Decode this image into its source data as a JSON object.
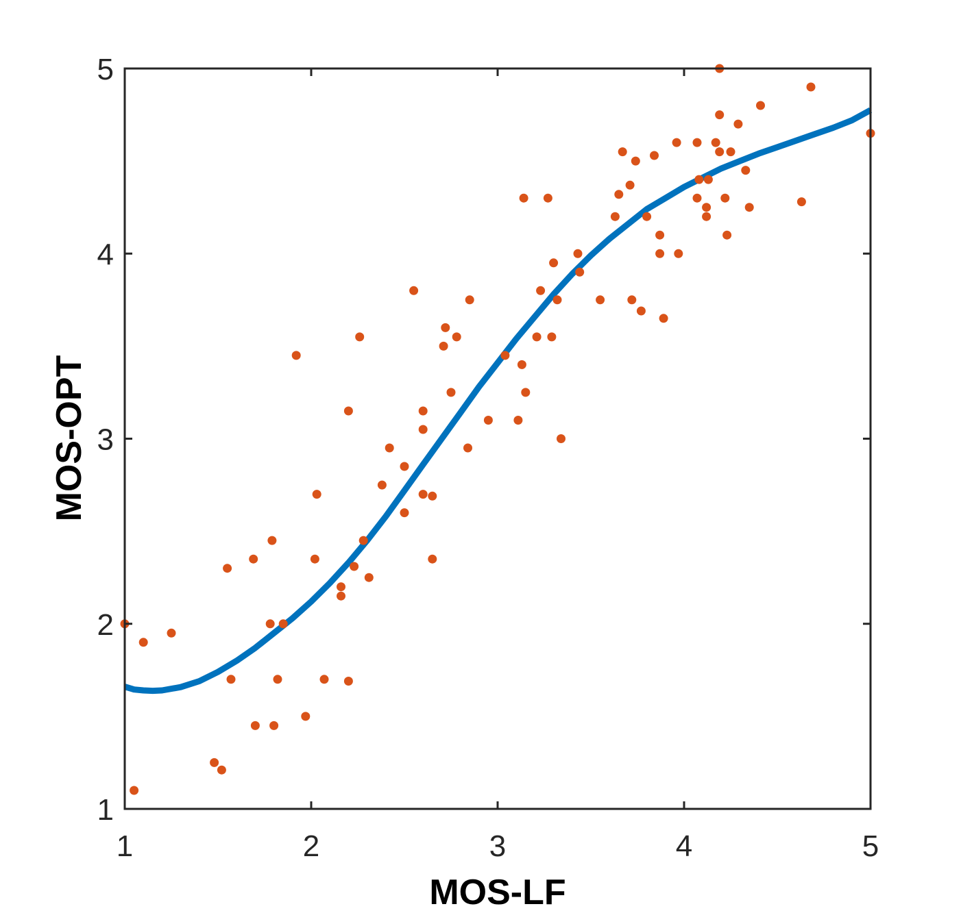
{
  "chart_data": {
    "type": "scatter",
    "title": "",
    "xlabel": "MOS-LF",
    "ylabel": "MOS-OPT",
    "xlim": [
      1,
      5
    ],
    "ylim": [
      1,
      5
    ],
    "xticks": [
      "1",
      "2",
      "3",
      "4",
      "5"
    ],
    "yticks": [
      "1",
      "2",
      "3",
      "4",
      "5"
    ],
    "grid": false,
    "legend": "none",
    "colors": {
      "points": "#D95319",
      "curve": "#0072BD",
      "axes": "#262626"
    },
    "series": [
      {
        "kind": "scatter",
        "points": [
          [
            1.0,
            2.0
          ],
          [
            1.05,
            1.1
          ],
          [
            1.1,
            1.9
          ],
          [
            1.25,
            1.95
          ],
          [
            1.48,
            1.25
          ],
          [
            1.52,
            1.21
          ],
          [
            1.55,
            2.3
          ],
          [
            1.57,
            1.7
          ],
          [
            1.69,
            2.35
          ],
          [
            1.7,
            1.45
          ],
          [
            1.78,
            2.0
          ],
          [
            1.79,
            2.45
          ],
          [
            1.8,
            1.45
          ],
          [
            1.82,
            1.7
          ],
          [
            1.85,
            2.0
          ],
          [
            1.92,
            3.45
          ],
          [
            1.97,
            1.5
          ],
          [
            2.02,
            2.35
          ],
          [
            2.03,
            2.7
          ],
          [
            2.07,
            1.7
          ],
          [
            2.16,
            2.2
          ],
          [
            2.16,
            2.15
          ],
          [
            2.2,
            3.15
          ],
          [
            2.2,
            1.69
          ],
          [
            2.23,
            2.31
          ],
          [
            2.26,
            3.55
          ],
          [
            2.28,
            2.45
          ],
          [
            2.31,
            2.25
          ],
          [
            2.38,
            2.75
          ],
          [
            2.42,
            2.95
          ],
          [
            2.5,
            2.85
          ],
          [
            2.5,
            2.6
          ],
          [
            2.55,
            3.8
          ],
          [
            2.6,
            3.15
          ],
          [
            2.6,
            3.05
          ],
          [
            2.6,
            2.7
          ],
          [
            2.65,
            2.69
          ],
          [
            2.65,
            2.35
          ],
          [
            2.71,
            3.5
          ],
          [
            2.72,
            3.6
          ],
          [
            2.75,
            3.25
          ],
          [
            2.78,
            3.55
          ],
          [
            2.84,
            2.95
          ],
          [
            2.85,
            3.75
          ],
          [
            2.95,
            3.1
          ],
          [
            3.04,
            3.45
          ],
          [
            3.11,
            3.1
          ],
          [
            3.13,
            3.4
          ],
          [
            3.14,
            4.3
          ],
          [
            3.15,
            3.25
          ],
          [
            3.21,
            3.55
          ],
          [
            3.23,
            3.8
          ],
          [
            3.27,
            4.3
          ],
          [
            3.29,
            3.55
          ],
          [
            3.3,
            3.95
          ],
          [
            3.32,
            3.75
          ],
          [
            3.34,
            3.0
          ],
          [
            3.43,
            4.0
          ],
          [
            3.44,
            3.9
          ],
          [
            3.55,
            3.75
          ],
          [
            3.63,
            4.2
          ],
          [
            3.65,
            4.32
          ],
          [
            3.67,
            4.55
          ],
          [
            3.71,
            4.37
          ],
          [
            3.72,
            3.75
          ],
          [
            3.74,
            4.5
          ],
          [
            3.77,
            3.69
          ],
          [
            3.8,
            4.2
          ],
          [
            3.84,
            4.53
          ],
          [
            3.87,
            4.1
          ],
          [
            3.87,
            4.0
          ],
          [
            3.89,
            3.65
          ],
          [
            3.96,
            4.6
          ],
          [
            3.97,
            4.0
          ],
          [
            4.07,
            4.6
          ],
          [
            4.07,
            4.3
          ],
          [
            4.08,
            4.4
          ],
          [
            4.12,
            4.25
          ],
          [
            4.12,
            4.2
          ],
          [
            4.13,
            4.4
          ],
          [
            4.17,
            4.6
          ],
          [
            4.19,
            4.75
          ],
          [
            4.19,
            4.55
          ],
          [
            4.19,
            5.0
          ],
          [
            4.22,
            4.3
          ],
          [
            4.23,
            4.1
          ],
          [
            4.25,
            4.55
          ],
          [
            4.29,
            4.7
          ],
          [
            4.33,
            4.45
          ],
          [
            4.35,
            4.25
          ],
          [
            4.41,
            4.8
          ],
          [
            4.63,
            4.28
          ],
          [
            4.68,
            4.9
          ],
          [
            5.0,
            4.65
          ]
        ]
      },
      {
        "kind": "line",
        "points": [
          [
            1.0,
            1.66
          ],
          [
            1.05,
            1.645
          ],
          [
            1.1,
            1.64
          ],
          [
            1.15,
            1.638
          ],
          [
            1.2,
            1.64
          ],
          [
            1.3,
            1.658
          ],
          [
            1.4,
            1.69
          ],
          [
            1.5,
            1.74
          ],
          [
            1.6,
            1.8
          ],
          [
            1.7,
            1.87
          ],
          [
            1.8,
            1.95
          ],
          [
            1.9,
            2.03
          ],
          [
            2.0,
            2.12
          ],
          [
            2.1,
            2.22
          ],
          [
            2.2,
            2.33
          ],
          [
            2.3,
            2.45
          ],
          [
            2.4,
            2.58
          ],
          [
            2.5,
            2.72
          ],
          [
            2.6,
            2.86
          ],
          [
            2.7,
            3.0
          ],
          [
            2.8,
            3.14
          ],
          [
            2.9,
            3.28
          ],
          [
            3.0,
            3.41
          ],
          [
            3.1,
            3.54
          ],
          [
            3.2,
            3.66
          ],
          [
            3.3,
            3.78
          ],
          [
            3.4,
            3.89
          ],
          [
            3.5,
            3.99
          ],
          [
            3.6,
            4.08
          ],
          [
            3.7,
            4.16
          ],
          [
            3.8,
            4.24
          ],
          [
            3.9,
            4.3
          ],
          [
            4.0,
            4.36
          ],
          [
            4.1,
            4.41
          ],
          [
            4.2,
            4.46
          ],
          [
            4.3,
            4.5
          ],
          [
            4.4,
            4.54
          ],
          [
            4.5,
            4.575
          ],
          [
            4.6,
            4.61
          ],
          [
            4.7,
            4.645
          ],
          [
            4.8,
            4.68
          ],
          [
            4.9,
            4.72
          ],
          [
            5.0,
            4.775
          ]
        ]
      }
    ]
  }
}
